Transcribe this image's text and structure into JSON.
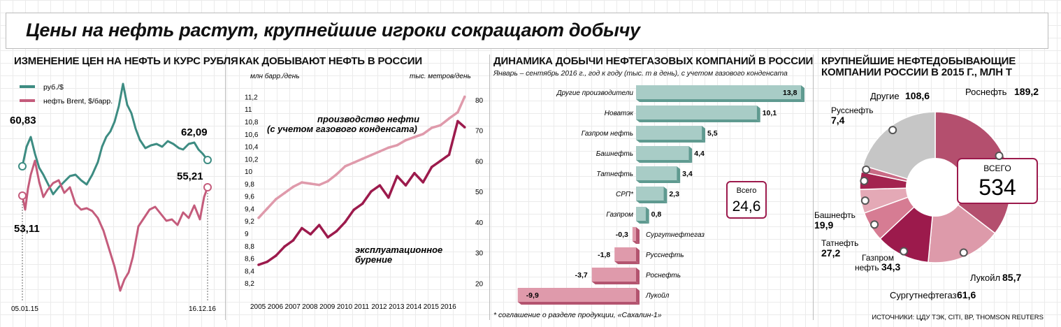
{
  "title": "Цены на нефть растут, крупнейшие игроки сокращают добычу",
  "sources": "ИСТОЧНИКИ: ЦДУ ТЭК, CITI, BP, THOMSON REUTERS",
  "colors": {
    "teal": "#3d8c82",
    "rose": "#c45c7c",
    "crimson": "#9c1a4c",
    "pink": "#df9aab",
    "gray": "#c6c6c6",
    "tealbar": "#a8ccc6"
  },
  "chart_data": [
    {
      "id": "prices",
      "type": "line",
      "title": "ИЗМЕНЕНИЕ ЦЕН НА НЕФТЬ И КУРС РУБЛЯ",
      "series": [
        {
          "name": "руб./$"
        },
        {
          "name": "нефть Brent, $/барр."
        }
      ],
      "x_start_label": "05.01.15",
      "x_end_label": "16.12.16",
      "annotations": {
        "rub_start": "60,83",
        "rub_end": "62,09",
        "brent_start": "53,11",
        "brent_end": "55,21"
      }
    },
    {
      "id": "production",
      "type": "line",
      "title": "КАК ДОБЫВАЮТ НЕФТЬ В РОССИИ",
      "y_left_label": "млн барр./день",
      "y_right_label": "тыс. метров/день",
      "y_left_ticks": [
        "11,2",
        "11",
        "10,8",
        "10,6",
        "10,4",
        "10,2",
        "10",
        "9,8",
        "9,6",
        "9,4",
        "9,2",
        "9",
        "8,8",
        "8,6",
        "8,4",
        "8,2"
      ],
      "y_right_ticks": [
        "80",
        "70",
        "60",
        "50",
        "40",
        "30",
        "20"
      ],
      "x_ticks": [
        "2005",
        "2006",
        "2007",
        "2008",
        "2009",
        "2010",
        "2011",
        "2012",
        "2013",
        "2014",
        "2015",
        "2016"
      ],
      "series": [
        {
          "name": "производство нефти (с учетом газового конденсата)",
          "x": [
            2005,
            2005.5,
            2006,
            2006.5,
            2007,
            2007.5,
            2008,
            2008.5,
            2009,
            2009.5,
            2010,
            2010.5,
            2011,
            2011.5,
            2012,
            2012.5,
            2013,
            2013.5,
            2014,
            2014.5,
            2015,
            2015.5,
            2016,
            2016.5,
            2016.9
          ],
          "values": [
            9.25,
            9.4,
            9.55,
            9.65,
            9.75,
            9.82,
            9.8,
            9.78,
            9.84,
            9.95,
            10.08,
            10.14,
            10.2,
            10.26,
            10.32,
            10.38,
            10.42,
            10.5,
            10.55,
            10.6,
            10.7,
            10.74,
            10.85,
            10.95,
            11.2
          ]
        },
        {
          "name": "эксплуатационное бурение",
          "x": [
            2005,
            2005.5,
            2006,
            2006.5,
            2007,
            2007.5,
            2008,
            2008.5,
            2009,
            2009.5,
            2010,
            2010.5,
            2011,
            2011.5,
            2012,
            2012.5,
            2013,
            2013.5,
            2014,
            2014.5,
            2015,
            2015.5,
            2016,
            2016.5,
            2016.9
          ],
          "values": [
            26,
            27,
            29,
            32,
            34,
            38,
            36,
            39,
            35,
            37,
            40,
            44,
            46,
            50,
            52,
            48,
            55,
            52,
            56,
            53,
            58,
            60,
            62,
            73,
            71
          ]
        }
      ]
    },
    {
      "id": "dynamics",
      "type": "bar",
      "title": "ДИНАМИКА ДОБЫЧИ НЕФТЕГАЗОВЫХ КОМПАНИЙ В РОССИИ",
      "subtitle": "Январь – сентябрь 2016 г., год к году (тыс. т в день), с учетом газового конденсата",
      "categories": [
        "Другие производители",
        "Новатэк",
        "Газпром нефть",
        "Башнефть",
        "Татнефть",
        "СРП*",
        "Газпром",
        "Сургутнефтегаз",
        "Русснефть",
        "Роснефть",
        "Лукойл"
      ],
      "values": [
        13.8,
        10.1,
        5.5,
        4.4,
        3.4,
        2.3,
        0.8,
        -0.3,
        -1.8,
        -3.7,
        -9.9
      ],
      "labels": [
        "13,8",
        "10,1",
        "5,5",
        "4,4",
        "3,4",
        "2,3",
        "0,8",
        "-0,3",
        "-1,8",
        "-3,7",
        "-9,9"
      ],
      "total_label": "Всего",
      "total_value": "24,6",
      "footnote": "* соглашение о разделе продукции, «Сахалин-1»"
    },
    {
      "id": "share",
      "type": "pie",
      "title": "КРУПНЕЙШИЕ НЕФТЕДОБЫВАЮЩИЕ КОМПАНИИ РОССИИ В 2015 Г., МЛН Т",
      "total_label": "ВСЕГО",
      "total_value": "534",
      "slices": [
        {
          "name": "Роснефть",
          "value": 189.2,
          "label": "189,2"
        },
        {
          "name": "Лукойл",
          "value": 85.7,
          "label": "85,7"
        },
        {
          "name": "Сургутнефтегаз",
          "value": 61.6,
          "label": "61,6"
        },
        {
          "name": "Газпром нефть",
          "value": 34.3,
          "label": "34,3"
        },
        {
          "name": "Татнефть",
          "value": 27.2,
          "label": "27,2"
        },
        {
          "name": "Башнефть",
          "value": 19.9,
          "label": "19,9"
        },
        {
          "name": "Русснефть",
          "value": 7.4,
          "label": "7,4"
        },
        {
          "name": "Другие",
          "value": 108.6,
          "label": "108,6"
        }
      ]
    }
  ]
}
